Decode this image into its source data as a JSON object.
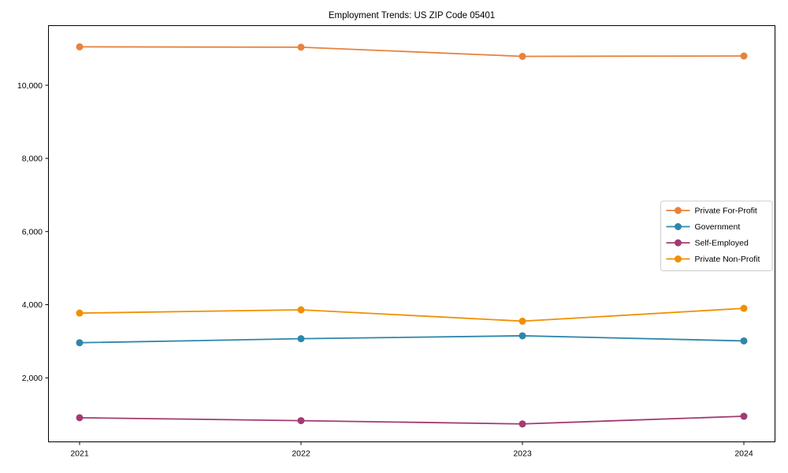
{
  "window": {
    "background": "#ffffff",
    "text_color": "#000000",
    "spine_color": "#000000",
    "legend_border_color": "#cccccc"
  },
  "chart_data": {
    "type": "line",
    "title": "Employment Trends: US ZIP Code 05401",
    "xlabel": "",
    "ylabel": "",
    "categories": [
      "2021",
      "2022",
      "2023",
      "2024"
    ],
    "series": [
      {
        "name": "Private For-Profit",
        "color": "#E8823C",
        "values": [
          11050,
          11040,
          10790,
          10800
        ]
      },
      {
        "name": "Government",
        "color": "#2E86AB",
        "values": [
          2960,
          3070,
          3150,
          3010
        ]
      },
      {
        "name": "Self-Employed",
        "color": "#A23B72",
        "values": [
          910,
          830,
          740,
          950
        ]
      },
      {
        "name": "Private Non-Profit",
        "color": "#F18F01",
        "values": [
          3770,
          3860,
          3550,
          3900
        ]
      }
    ],
    "yticks": [
      2000,
      4000,
      6000,
      8000,
      10000
    ],
    "ytick_labels": [
      "2,000",
      "4,000",
      "6,000",
      "8,000",
      "10,000"
    ],
    "ylim": [
      250,
      11630
    ],
    "grid": false,
    "legend": {
      "position": "center-right",
      "frame": true,
      "entries": [
        "Private For-Profit",
        "Government",
        "Self-Employed",
        "Private Non-Profit"
      ]
    },
    "marker": "circle",
    "line_width": 1.8,
    "marker_radius": 4.5
  }
}
